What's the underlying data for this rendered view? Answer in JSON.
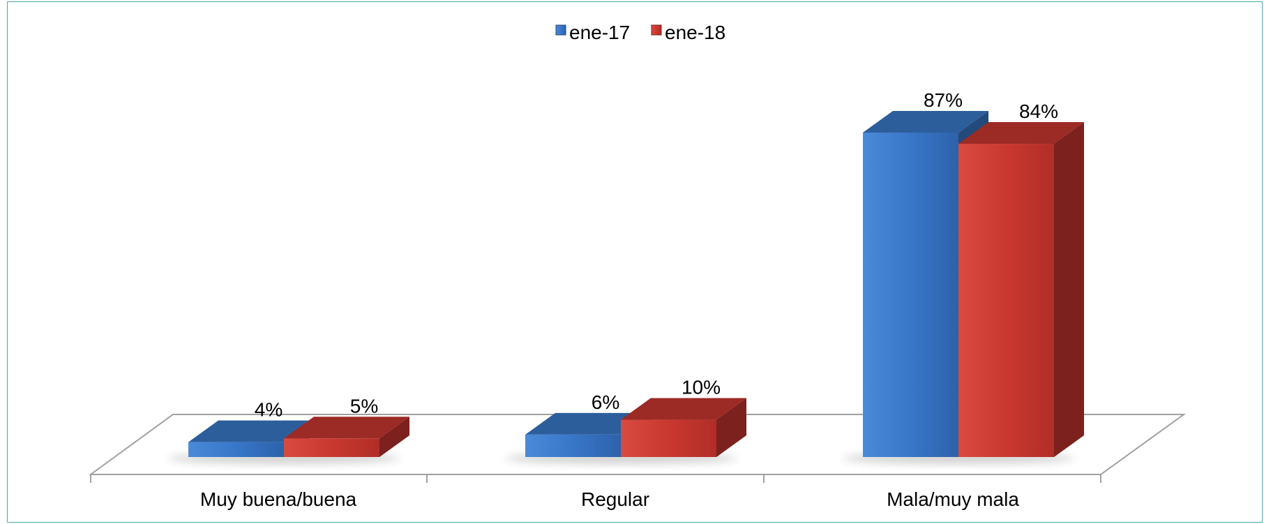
{
  "chart_data": {
    "type": "bar",
    "categories": [
      "Muy buena/buena",
      "Regular",
      "Mala/muy mala"
    ],
    "series": [
      {
        "name": "ene-17",
        "values": [
          4,
          6,
          87
        ],
        "color": "#3a78c8"
      },
      {
        "name": "ene-18",
        "values": [
          5,
          10,
          84
        ],
        "color": "#c8362f"
      }
    ],
    "data_labels": [
      [
        "4%",
        "6%",
        "87%"
      ],
      [
        "5%",
        "10%",
        "84%"
      ]
    ],
    "ylim": [
      0,
      87
    ],
    "legend_position": "top-center",
    "grid": false,
    "style": "3d-column"
  }
}
